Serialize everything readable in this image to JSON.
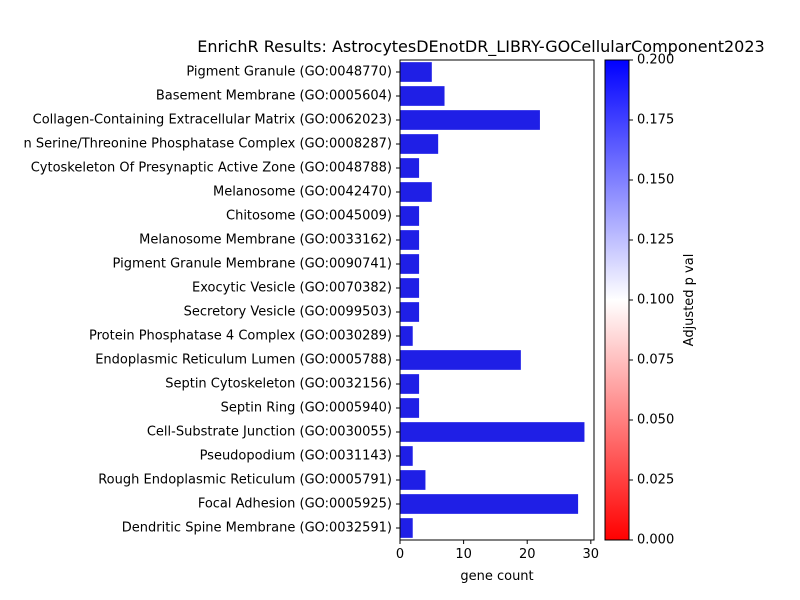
{
  "chart_data": {
    "type": "bar",
    "orientation": "horizontal",
    "title": "EnrichR Results: AstrocytesDEnotDR_LIBRY-GOCellularComponent2023",
    "xlabel": "gene count",
    "ylabel": "",
    "xlim": [
      0,
      30.5
    ],
    "xticks": [
      0,
      10,
      20,
      30
    ],
    "grid": false,
    "bar_color": "#1f1fe6",
    "categories": [
      "Pigment Granule (GO:0048770)",
      "Basement Membrane (GO:0005604)",
      "Collagen-Containing Extracellular Matrix (GO:0062023)",
      "n Serine/Threonine Phosphatase Complex (GO:0008287)",
      "Cytoskeleton Of Presynaptic Active Zone (GO:0048788)",
      "Melanosome (GO:0042470)",
      "Chitosome (GO:0045009)",
      "Melanosome Membrane (GO:0033162)",
      "Pigment Granule Membrane (GO:0090741)",
      "Exocytic Vesicle (GO:0070382)",
      "Secretory Vesicle (GO:0099503)",
      "Protein Phosphatase 4 Complex (GO:0030289)",
      "Endoplasmic Reticulum Lumen (GO:0005788)",
      "Septin Cytoskeleton (GO:0032156)",
      "Septin Ring (GO:0005940)",
      "Cell-Substrate Junction (GO:0030055)",
      "Pseudopodium (GO:0031143)",
      "Rough Endoplasmic Reticulum (GO:0005791)",
      "Focal Adhesion (GO:0005925)",
      "Dendritic Spine Membrane (GO:0032591)"
    ],
    "values": [
      5,
      7,
      22,
      6,
      3,
      5,
      3,
      3,
      3,
      3,
      3,
      2,
      19,
      3,
      3,
      29,
      2,
      4,
      28,
      2
    ],
    "colorbar": {
      "label": "Adjusted p val",
      "range": [
        0.0,
        0.2
      ],
      "ticks": [
        "0.000",
        "0.025",
        "0.050",
        "0.075",
        "0.100",
        "0.125",
        "0.150",
        "0.175",
        "0.200"
      ],
      "colormap": [
        "#ff0000",
        "#ffffff",
        "#0000ff"
      ]
    }
  }
}
